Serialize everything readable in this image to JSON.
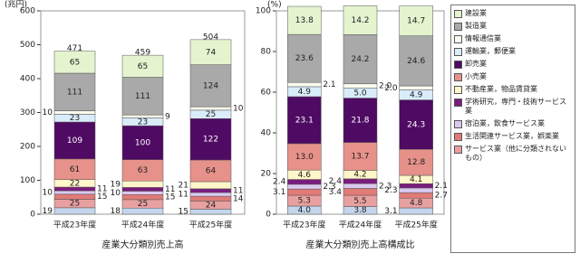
{
  "chart_data": [
    {
      "type": "bar",
      "stacked": true,
      "y_label": "(兆円)",
      "title": "産業大分類別売上高",
      "categories": [
        "平成23年度",
        "平成24年度",
        "平成25年度"
      ],
      "ylim": [
        0,
        600
      ],
      "yticks": [
        0,
        100,
        200,
        300,
        400,
        500,
        600
      ],
      "totals": [
        471,
        459,
        504
      ],
      "series": [
        {
          "name": "建設業",
          "color": "#e4f4cf",
          "values": [
            65,
            65,
            74
          ]
        },
        {
          "name": "製造業",
          "color": "#a9a9a9",
          "values": [
            111,
            111,
            124
          ]
        },
        {
          "name": "情報通信業",
          "color": "#fbfbef",
          "values": [
            10,
            9,
            10
          ]
        },
        {
          "name": "運輸業，郵便業",
          "color": "#d9ecfa",
          "values": [
            23,
            23,
            25
          ]
        },
        {
          "name": "卸売業",
          "color": "#4f0a63",
          "values": [
            109,
            100,
            122
          ]
        },
        {
          "name": "小売業",
          "color": "#e7918b",
          "values": [
            61,
            63,
            64
          ]
        },
        {
          "name": "不動産業，物品賃貸業",
          "color": "#fff6c9",
          "values": [
            22,
            19,
            21
          ]
        },
        {
          "name": "学術研究，専門・技術サービス業",
          "color": "#7b1c7d",
          "values": [
            11,
            11,
            11
          ]
        },
        {
          "name": "宿泊業，飲食サービス業",
          "color": "#d9c9ef",
          "values": [
            10,
            10,
            11
          ]
        },
        {
          "name": "生活関連サービス業，娯楽業",
          "color": "#e07b78",
          "values": [
            15,
            15,
            14
          ]
        },
        {
          "name": "サービス業（他に分類されないもの）",
          "color": "#e9a0a0",
          "values": [
            25,
            25,
            24
          ]
        },
        {
          "color": "#c5d5ec",
          "values": [
            19,
            18,
            15
          ]
        }
      ]
    },
    {
      "type": "bar",
      "stacked": true,
      "y_label": "(%)",
      "title": "産業大分類別売上高構成比",
      "categories": [
        "平成23年度",
        "平成24年度",
        "平成25年度"
      ],
      "ylim": [
        0,
        100
      ],
      "yticks": [
        0,
        20,
        40,
        60,
        80,
        100
      ],
      "series": [
        {
          "color": "#e4f4cf",
          "values": [
            13.8,
            14.2,
            14.7
          ],
          "value_labels": [
            "13.8",
            "14.2",
            "14.7"
          ]
        },
        {
          "color": "#a9a9a9",
          "values": [
            23.6,
            24.2,
            24.6
          ],
          "value_labels": [
            "23.6",
            "24.2",
            "24.6"
          ]
        },
        {
          "color": "#fbfbef",
          "values": [
            2.1,
            2.0,
            2.0
          ],
          "value_labels": [
            "2.1",
            "2.0",
            "2.0"
          ]
        },
        {
          "color": "#d9ecfa",
          "values": [
            4.9,
            5.0,
            4.9
          ],
          "value_labels": [
            "4.9",
            "5.0",
            "4.9"
          ]
        },
        {
          "color": "#4f0a63",
          "values": [
            23.1,
            21.8,
            24.3
          ],
          "value_labels": [
            "23.1",
            "21.8",
            "24.3"
          ]
        },
        {
          "color": "#e7918b",
          "values": [
            13.0,
            13.7,
            12.8
          ],
          "value_labels": [
            "13.0",
            "13.7",
            "12.8"
          ]
        },
        {
          "color": "#fff6c9",
          "values": [
            4.6,
            4.2,
            4.1
          ],
          "value_labels": [
            "4.6",
            "4.2",
            "4.1"
          ]
        },
        {
          "color": "#7b1c7d",
          "values": [
            2.4,
            2.4,
            2.1
          ],
          "value_labels": [
            "2.4",
            "2.4",
            "2.1"
          ]
        },
        {
          "color": "#d9c9ef",
          "values": [
            2.3,
            2.3,
            2.3
          ],
          "value_labels": [
            "2.3",
            "2.3",
            "2.3"
          ]
        },
        {
          "color": "#e07b78",
          "values": [
            3.1,
            3.4,
            2.7
          ],
          "value_labels": [
            "3.1",
            "3.4",
            "2.7"
          ]
        },
        {
          "color": "#e9a0a0",
          "values": [
            5.3,
            5.5,
            4.8
          ],
          "value_labels": [
            "5.3",
            "5.5",
            "4.8"
          ]
        },
        {
          "color": "#c5d5ec",
          "values": [
            4.0,
            3.8,
            3.1
          ],
          "value_labels": [
            "4.0",
            "3.8",
            "3.1"
          ]
        }
      ]
    }
  ]
}
